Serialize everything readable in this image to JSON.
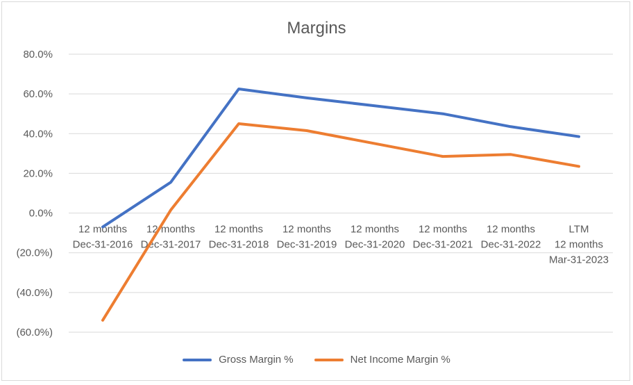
{
  "chart_data": {
    "type": "line",
    "title": "Margins",
    "xlabel": "",
    "ylabel": "",
    "ylim": [
      -60,
      80
    ],
    "yticks": [
      "80.0%",
      "60.0%",
      "40.0%",
      "20.0%",
      "0.0%",
      "(20.0%)",
      "(40.0%)",
      "(60.0%)"
    ],
    "categories": [
      [
        "12 months",
        "Dec-31-2016"
      ],
      [
        "12 months",
        "Dec-31-2017"
      ],
      [
        "12 months",
        "Dec-31-2018"
      ],
      [
        "12 months",
        "Dec-31-2019"
      ],
      [
        "12 months",
        "Dec-31-2020"
      ],
      [
        "12 months",
        "Dec-31-2021"
      ],
      [
        "12 months",
        "Dec-31-2022"
      ],
      [
        "LTM",
        "12 months",
        "Mar-31-2023"
      ]
    ],
    "series": [
      {
        "name": "Gross Margin %",
        "color": "#4472c4",
        "values": [
          -7.0,
          15.5,
          62.5,
          58.0,
          54.0,
          50.0,
          43.5,
          38.5
        ]
      },
      {
        "name": "Net Income Margin %",
        "color": "#ed7d31",
        "values": [
          -54.0,
          1.5,
          45.0,
          41.5,
          35.0,
          28.5,
          29.5,
          23.5
        ]
      }
    ],
    "grid": true,
    "legend": "bottom"
  }
}
